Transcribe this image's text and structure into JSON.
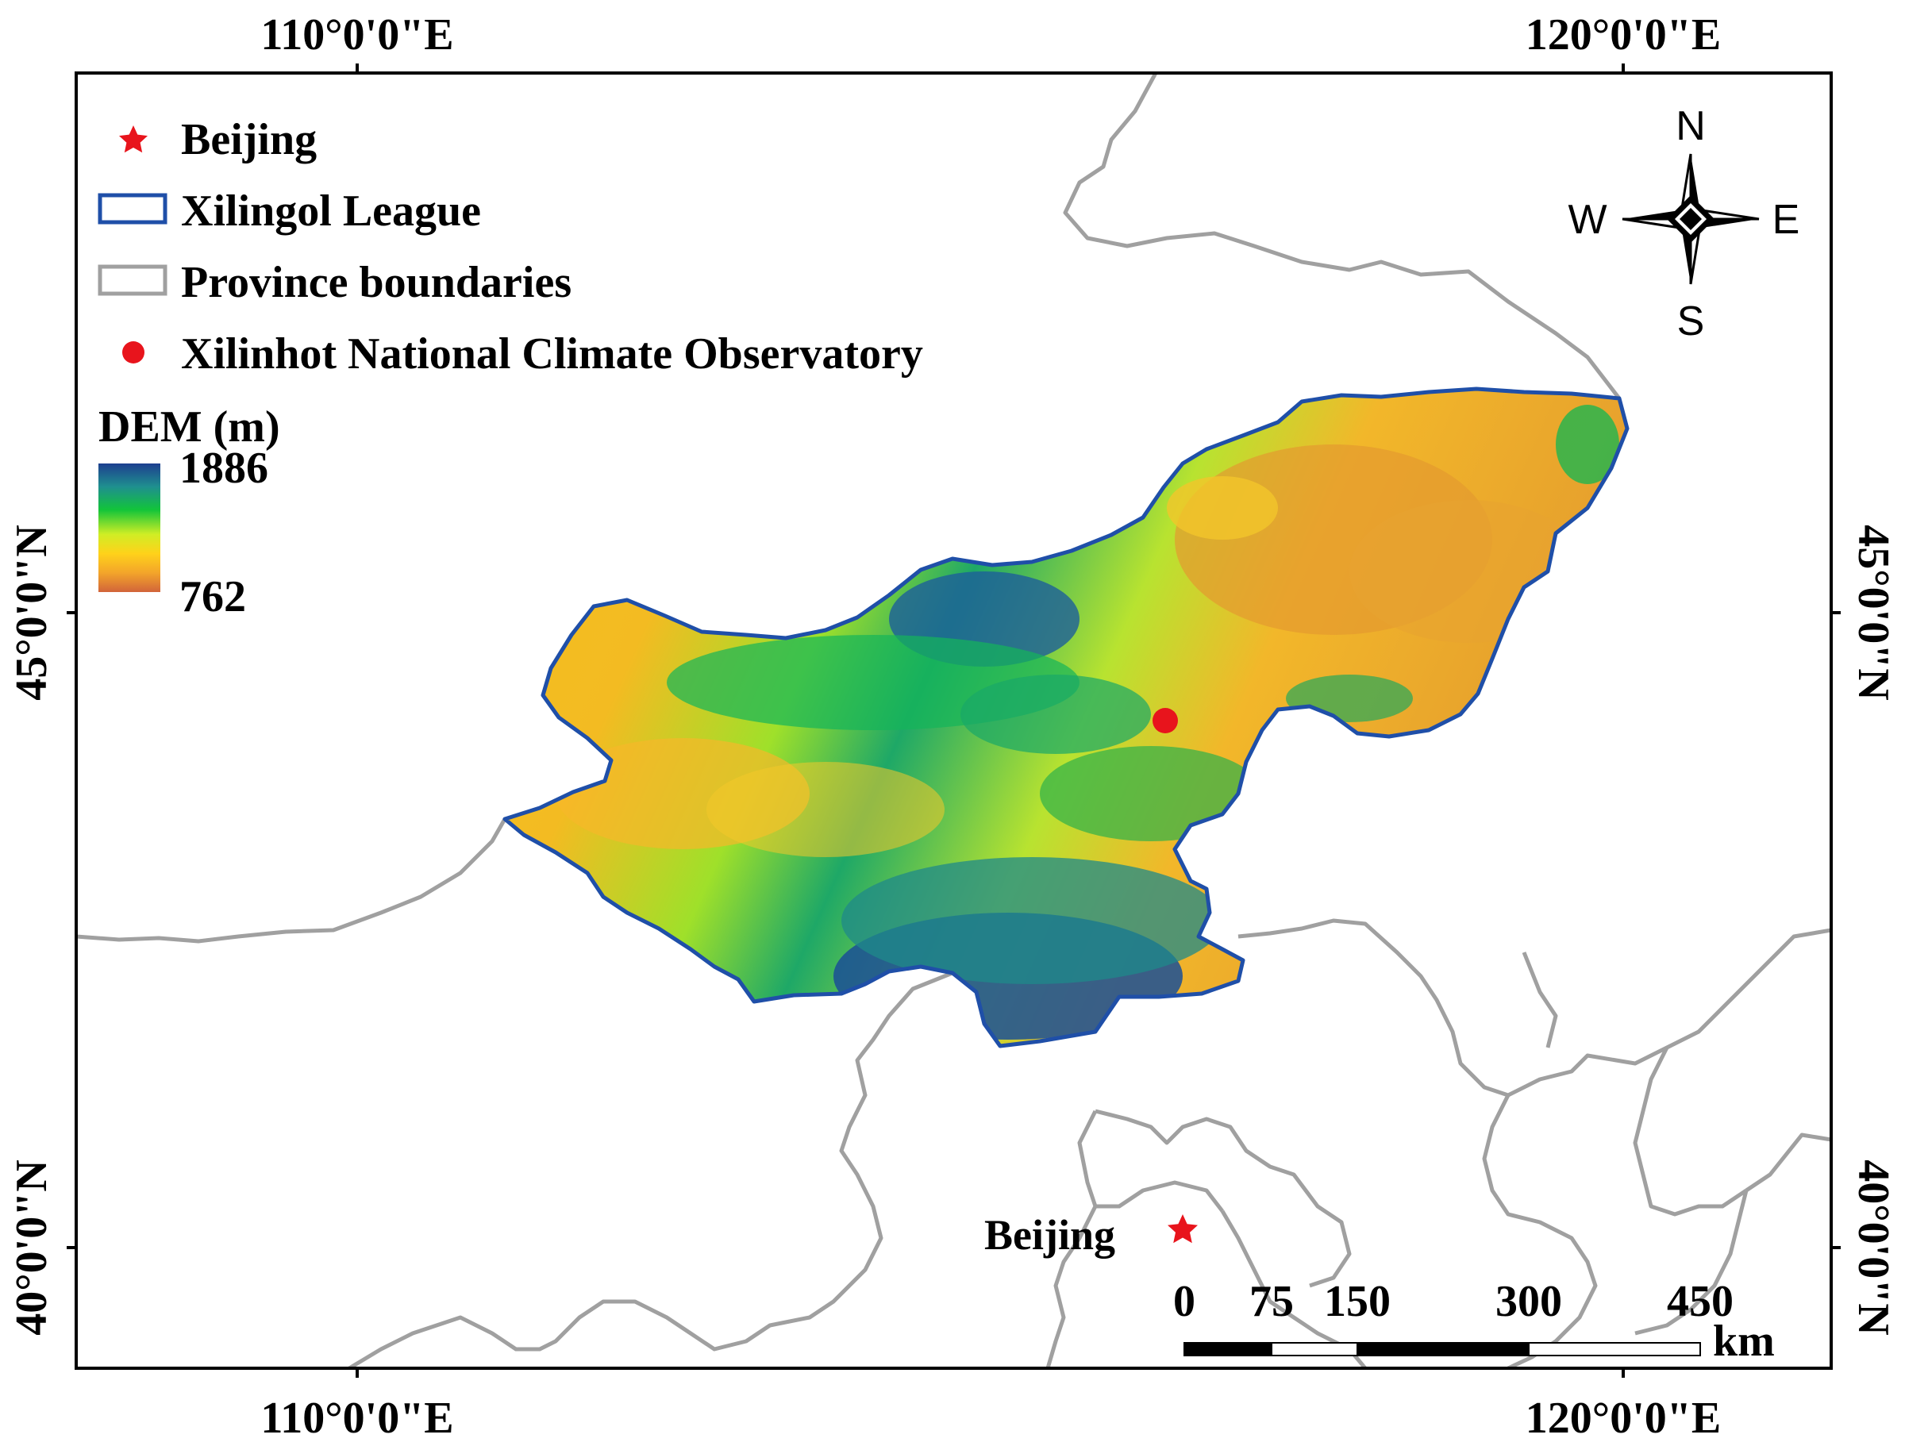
{
  "graticule": {
    "top_labels": [
      "110°0'0\"E",
      "120°0'0\"E"
    ],
    "bottom_labels": [
      "110°0'0\"E",
      "120°0'0\"E"
    ],
    "left_labels": [
      "45°0'0\"N",
      "40°0'0\"N"
    ],
    "right_labels": [
      "45°0'0\"N",
      "40°0'0\"N"
    ]
  },
  "legend": {
    "items": [
      {
        "icon": "star-icon",
        "label": "Beijing",
        "color": "#e8141c"
      },
      {
        "icon": "blue-outline-box-icon",
        "label": "Xilingol League",
        "color": "#1f4fa8"
      },
      {
        "icon": "gray-outline-box-icon",
        "label": "Province boundaries",
        "color": "#a0a0a0"
      },
      {
        "icon": "red-dot-icon",
        "label": "Xilinhot National Climate Observatory",
        "color": "#e8141c"
      }
    ],
    "dem_title": "DEM (m)",
    "dem_max": "1886",
    "dem_min": "762",
    "dem_colors": [
      "#1d3f8f",
      "#1f8f8f",
      "#12c43a",
      "#cfee25",
      "#ffd21a",
      "#f3a52a",
      "#d2643a"
    ]
  },
  "compass": {
    "n": "N",
    "s": "S",
    "w": "W",
    "e": "E"
  },
  "places": {
    "beijing_label": "Beijing"
  },
  "scale_bar": {
    "ticks": [
      "0",
      "75",
      "150",
      "300",
      "450"
    ],
    "unit": "km"
  },
  "colors": {
    "league_border": "#1f4fa8",
    "province_border": "#a0a0a0",
    "marker": "#e8141c"
  }
}
